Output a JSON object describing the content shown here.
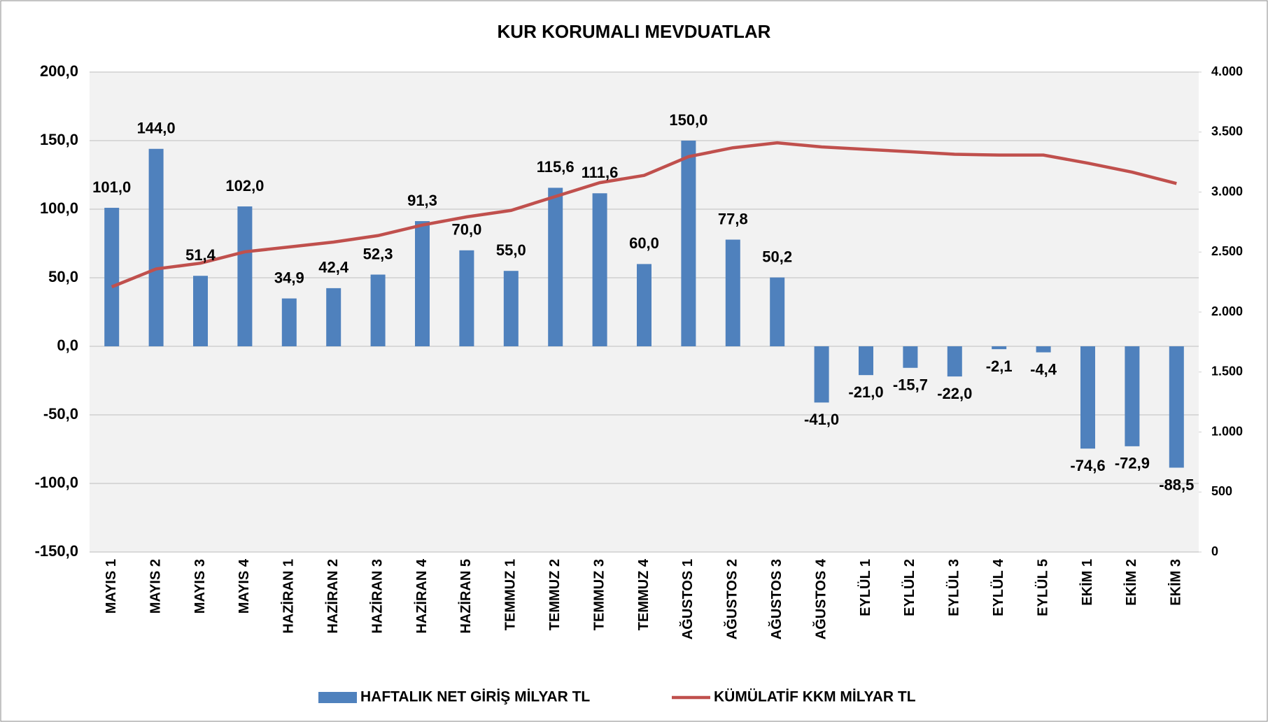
{
  "chart_data": {
    "type": "bar-line",
    "title": "KUR KORUMALI MEVDUATLAR",
    "categories": [
      "MAYIS 1",
      "MAYIS 2",
      "MAYIS 3",
      "MAYIS 4",
      "HAZİRAN 1",
      "HAZİRAN 2",
      "HAZİRAN 3",
      "HAZİRAN 4",
      "HAZİRAN 5",
      "TEMMUZ 1",
      "TEMMUZ 2",
      "TEMMUZ 3",
      "TEMMUZ 4",
      "AĞUSTOS 1",
      "AĞUSTOS 2",
      "AĞUSTOS 3",
      "AĞUSTOS 4",
      "EYLÜL 1",
      "EYLÜL 2",
      "EYLÜL 3",
      "EYLÜL 4",
      "EYLÜL 5",
      "EKİM 1",
      "EKİM 2",
      "EKİM 3"
    ],
    "series": [
      {
        "name": "HAFTALIK NET GİRİŞ MİLYAR TL",
        "type": "bar",
        "color": "#4f81bd",
        "values": [
          101.0,
          144.0,
          51.4,
          102.0,
          34.9,
          42.4,
          52.3,
          91.3,
          70.0,
          55.0,
          115.6,
          111.6,
          60.0,
          150.0,
          77.8,
          50.2,
          -41.0,
          -21.0,
          -15.7,
          -22.0,
          -2.1,
          -4.4,
          -74.6,
          -72.9,
          -88.5
        ],
        "value_labels": [
          "101,0",
          "144,0",
          "51,4",
          "102,0",
          "34,9",
          "42,4",
          "52,3",
          "91,3",
          "70,0",
          "55,0",
          "115,6",
          "111,6",
          "60,0",
          "150,0",
          "77,8",
          "50,2",
          "-41,0",
          "-21,0",
          "-15,7",
          "-22,0",
          "-2,1",
          "-4,4",
          "-74,6",
          "-72,9",
          "-88,5"
        ]
      },
      {
        "name": "KÜMÜLATİF KKM MİLYAR TL",
        "type": "line",
        "axis": "y2",
        "color": "#c0504d",
        "values": [
          2210,
          2359,
          2407,
          2502,
          2542,
          2583,
          2637,
          2725,
          2793,
          2847,
          2963,
          3078,
          3139,
          3295,
          3369,
          3410,
          3376,
          3356,
          3336,
          3315,
          3308,
          3308,
          3241,
          3166,
          3071
        ]
      }
    ],
    "ylim": [
      -150,
      200
    ],
    "yticks": [
      {
        "value": -150,
        "label": "-150,0"
      },
      {
        "value": -100,
        "label": "-100,0"
      },
      {
        "value": -50,
        "label": "-50,0"
      },
      {
        "value": 0,
        "label": "0,0"
      },
      {
        "value": 50,
        "label": "50,0"
      },
      {
        "value": 100,
        "label": "100,0"
      },
      {
        "value": 150,
        "label": "150,0"
      },
      {
        "value": 200,
        "label": "200,0"
      }
    ],
    "y2lim": [
      0,
      4000
    ],
    "y2ticks": [
      0,
      500,
      {
        "value": 1000,
        "label": "1.000"
      },
      {
        "value": 1500,
        "label": "1.500"
      },
      {
        "value": 2000,
        "label": "2.000"
      },
      {
        "value": 2500,
        "label": "2.500"
      },
      {
        "value": 3000,
        "label": "3.000"
      },
      {
        "value": 3500,
        "label": "3.500"
      },
      {
        "value": 4000,
        "label": "4.000"
      }
    ],
    "grid": true,
    "legend": "bottom"
  }
}
